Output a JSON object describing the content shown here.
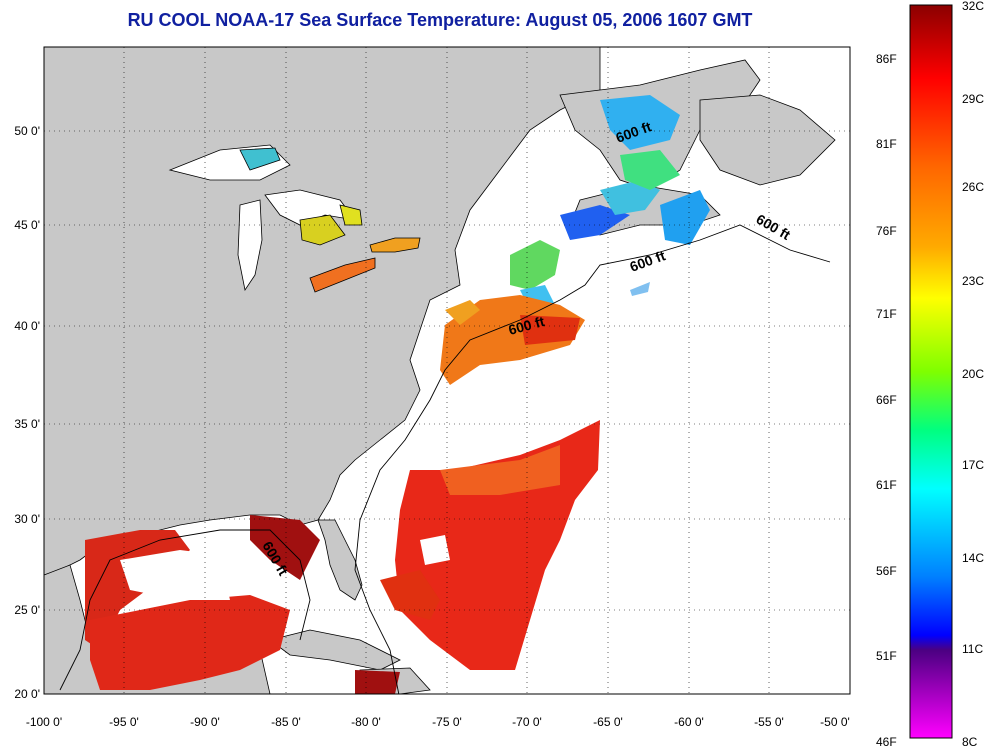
{
  "title": "RU COOL  NOAA-17  Sea Surface Temperature:  August 05, 2006 1607 GMT",
  "lon_ticks": [
    "-100 0'",
    "-95 0'",
    "-90 0'",
    "-85 0'",
    "-80 0'",
    "-75 0'",
    "-70 0'",
    "-65 0'",
    "-60 0'",
    "-55 0'",
    "-50 0'"
  ],
  "lat_ticks": [
    "50 0'",
    "45 0'",
    "40 0'",
    "35 0'",
    "30 0'",
    "25 0'",
    "20 0'"
  ],
  "contour_labels": [
    "600 ft",
    "600 ft",
    "600 ft",
    "600 ft",
    "600 ft"
  ],
  "colorbar": {
    "celsius": [
      "32C",
      "29C",
      "26C",
      "23C",
      "20C",
      "17C",
      "14C",
      "11C",
      "8C"
    ],
    "fahrenheit": [
      "86F",
      "81F",
      "76F",
      "71F",
      "66F",
      "61F",
      "56F",
      "51F",
      "46F"
    ],
    "stops": [
      "#8b0000",
      "#ff0000",
      "#ff8c00",
      "#ffff00",
      "#00ff00",
      "#00ffff",
      "#00a0ff",
      "#0000ff",
      "#4b0082",
      "#ff00ff"
    ]
  },
  "colors": {
    "land": "#c8c8c8",
    "ocean": "#ffffff",
    "title": "#1020a0"
  }
}
